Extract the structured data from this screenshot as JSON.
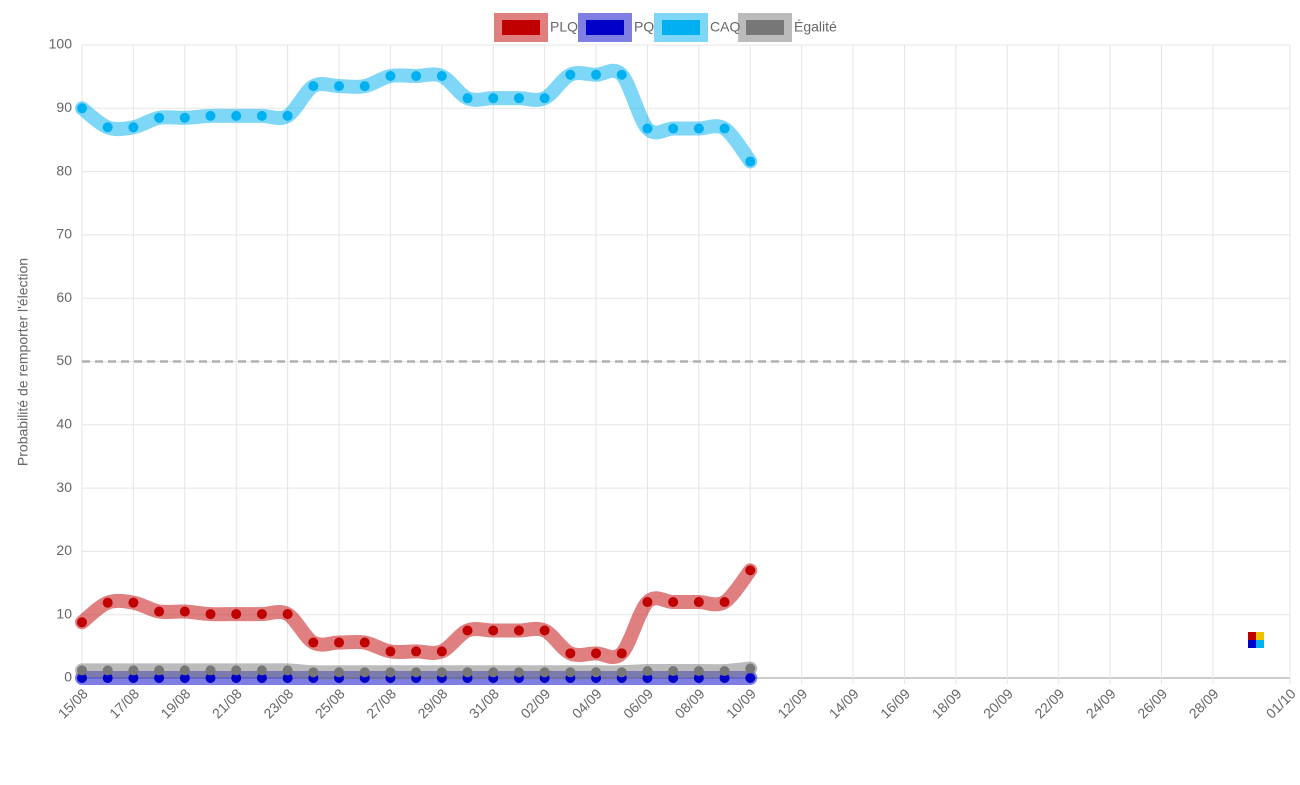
{
  "chart_data": {
    "type": "line",
    "y_label": "Probabilité de remporter l'élection",
    "categories": [
      "15/08",
      null,
      "17/08",
      null,
      "19/08",
      null,
      "21/08",
      null,
      "23/08",
      null,
      "25/08",
      null,
      "27/08",
      null,
      "29/08",
      null,
      "31/08",
      null,
      "02/09",
      null,
      "04/09",
      null,
      "06/09",
      null,
      "08/09",
      null,
      "10/09",
      null,
      "12/09",
      null,
      "14/09",
      null,
      "16/09",
      null,
      "18/09",
      null,
      "20/09",
      null,
      "22/09",
      null,
      "24/09",
      null,
      "26/09",
      null,
      "28/09",
      null,
      null,
      "01/10"
    ],
    "series": [
      {
        "name": "PLQ",
        "color": "#c00000",
        "values": [
          8.8,
          11.9,
          11.9,
          10.5,
          10.5,
          10.1,
          10.1,
          10.1,
          10.1,
          5.6,
          5.6,
          5.6,
          4.2,
          4.2,
          4.2,
          7.5,
          7.5,
          7.5,
          7.5,
          3.9,
          3.9,
          3.9,
          12,
          12,
          12,
          12,
          17,
          null,
          null,
          null,
          null,
          null,
          null,
          null,
          null,
          null,
          null,
          null,
          null,
          null,
          null,
          null,
          null,
          null,
          null,
          null,
          null,
          null
        ]
      },
      {
        "name": "PQ",
        "color": "#0000c8",
        "values": [
          0,
          0,
          0,
          0,
          0,
          0,
          0,
          0,
          0,
          0,
          0,
          0,
          0,
          0,
          0,
          0,
          0,
          0,
          0,
          0,
          0,
          0,
          0,
          0,
          0,
          0,
          0,
          null,
          null,
          null,
          null,
          null,
          null,
          null,
          null,
          null,
          null,
          null,
          null,
          null,
          null,
          null,
          null,
          null,
          null,
          null,
          null,
          null
        ]
      },
      {
        "name": "CAQ",
        "color": "#00b0f0",
        "values": [
          90,
          87,
          87,
          88.5,
          88.5,
          88.8,
          88.8,
          88.8,
          88.8,
          93.5,
          93.5,
          93.5,
          95.1,
          95.1,
          95.1,
          91.6,
          91.6,
          91.6,
          91.6,
          95.3,
          95.3,
          95.3,
          86.8,
          86.8,
          86.8,
          86.8,
          81.6,
          null,
          null,
          null,
          null,
          null,
          null,
          null,
          null,
          null,
          null,
          null,
          null,
          null,
          null,
          null,
          null,
          null,
          null,
          null,
          null,
          null
        ]
      },
      {
        "name": "Égalité",
        "color": "#777777",
        "values": [
          1.2,
          1.2,
          1.2,
          1.2,
          1.2,
          1.2,
          1.2,
          1.2,
          1.2,
          0.9,
          0.9,
          0.9,
          0.9,
          0.9,
          0.9,
          0.9,
          0.9,
          0.9,
          0.9,
          0.9,
          0.9,
          0.9,
          1.1,
          1.1,
          1.1,
          1.1,
          1.5,
          null,
          null,
          null,
          null,
          null,
          null,
          null,
          null,
          null,
          null,
          null,
          null,
          null,
          null,
          null,
          null,
          null,
          null,
          null,
          null,
          null
        ]
      }
    ],
    "ylim": [
      0,
      100
    ],
    "yticks": [
      0,
      10,
      20,
      30,
      40,
      50,
      60,
      70,
      80,
      90,
      100
    ],
    "threshold": 50,
    "grid": true,
    "legend": "top"
  }
}
